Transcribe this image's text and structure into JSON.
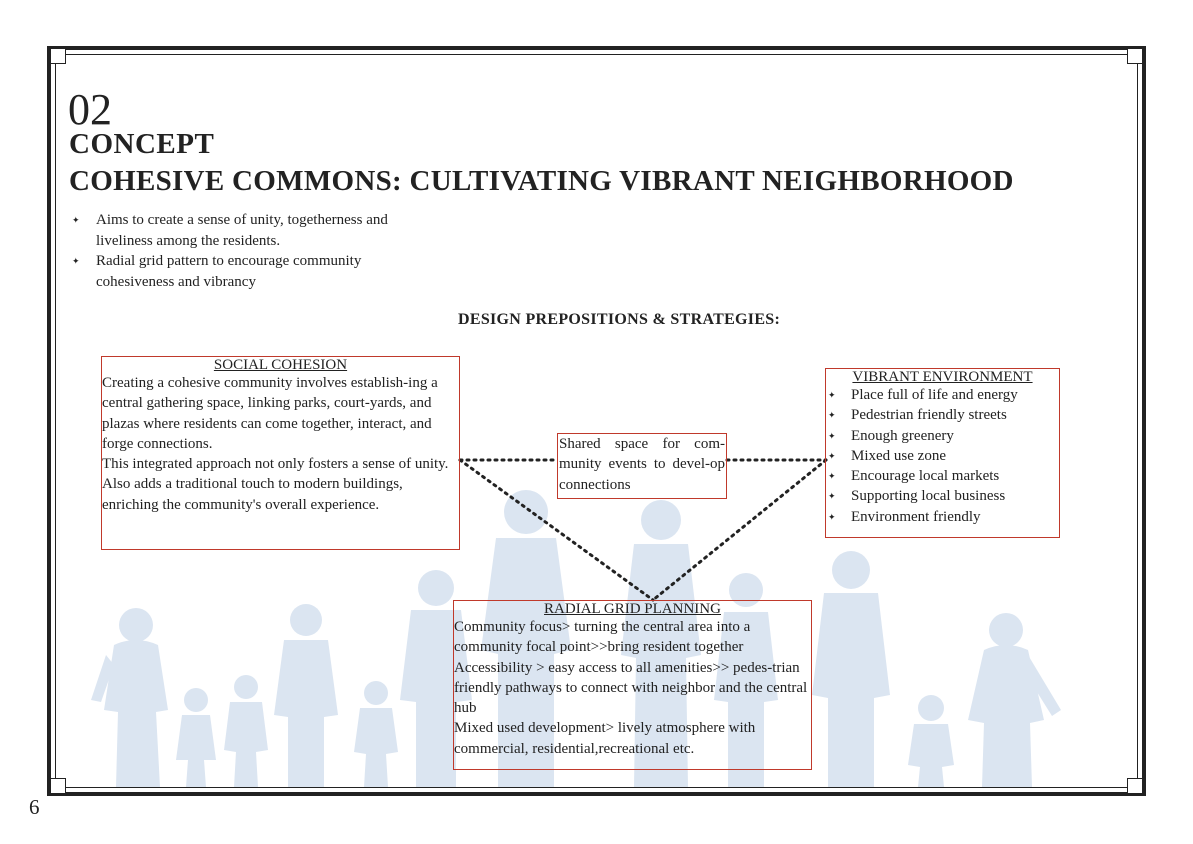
{
  "page": {
    "section_number": "02",
    "section_title": "CONCEPT",
    "concept_title": "COHESIVE COMMONS: CULTIVATING VIBRANT NEIGHBORHOOD",
    "intro_bullets": [
      "Aims to create a sense of unity, togetherness and liveliness among the residents.",
      "Radial grid pattern to encourage community cohesiveness and vibrancy"
    ],
    "strategies_heading": "DESIGN PREPOSITIONS & STRATEGIES:",
    "page_number": "6"
  },
  "social_cohesion": {
    "title": "SOCIAL COHESION",
    "paragraphs": [
      "Creating a cohesive community involves establish-ing a central gathering space, linking parks, court-yards, and plazas where residents can come together, interact, and forge connections.",
      "This integrated approach not only fosters a sense of unity.",
      "Also adds a traditional touch to modern buildings, enriching the community's overall experience."
    ]
  },
  "shared_space": {
    "text": "Shared space for com-munity events to devel-op connections"
  },
  "vibrant_environment": {
    "title": "VIBRANT ENVIRONMENT",
    "items": [
      "Place full of life and energy",
      "Pedestrian friendly streets",
      "Enough greenery",
      "Mixed use zone",
      "Encourage local markets",
      "Supporting local business",
      "Environment friendly"
    ]
  },
  "radial_grid": {
    "title": "RADIAL GRID PLANNING",
    "paragraphs": [
      "Community focus> turning the central area into a community focal point>>bring resident together",
      "Accessibility > easy access to all amenities>> pedes-trian friendly pathways to connect with neighbor and the central hub",
      "Mixed used development> lively atmosphere with commercial, residential,recreational etc."
    ]
  },
  "icons": {
    "bullet": "diamond-bullet-icon",
    "background": "family-silhouettes-icon"
  },
  "colors": {
    "box_border": "#c0392b",
    "silhouette": "#dbe5f1",
    "frame": "#222222"
  }
}
